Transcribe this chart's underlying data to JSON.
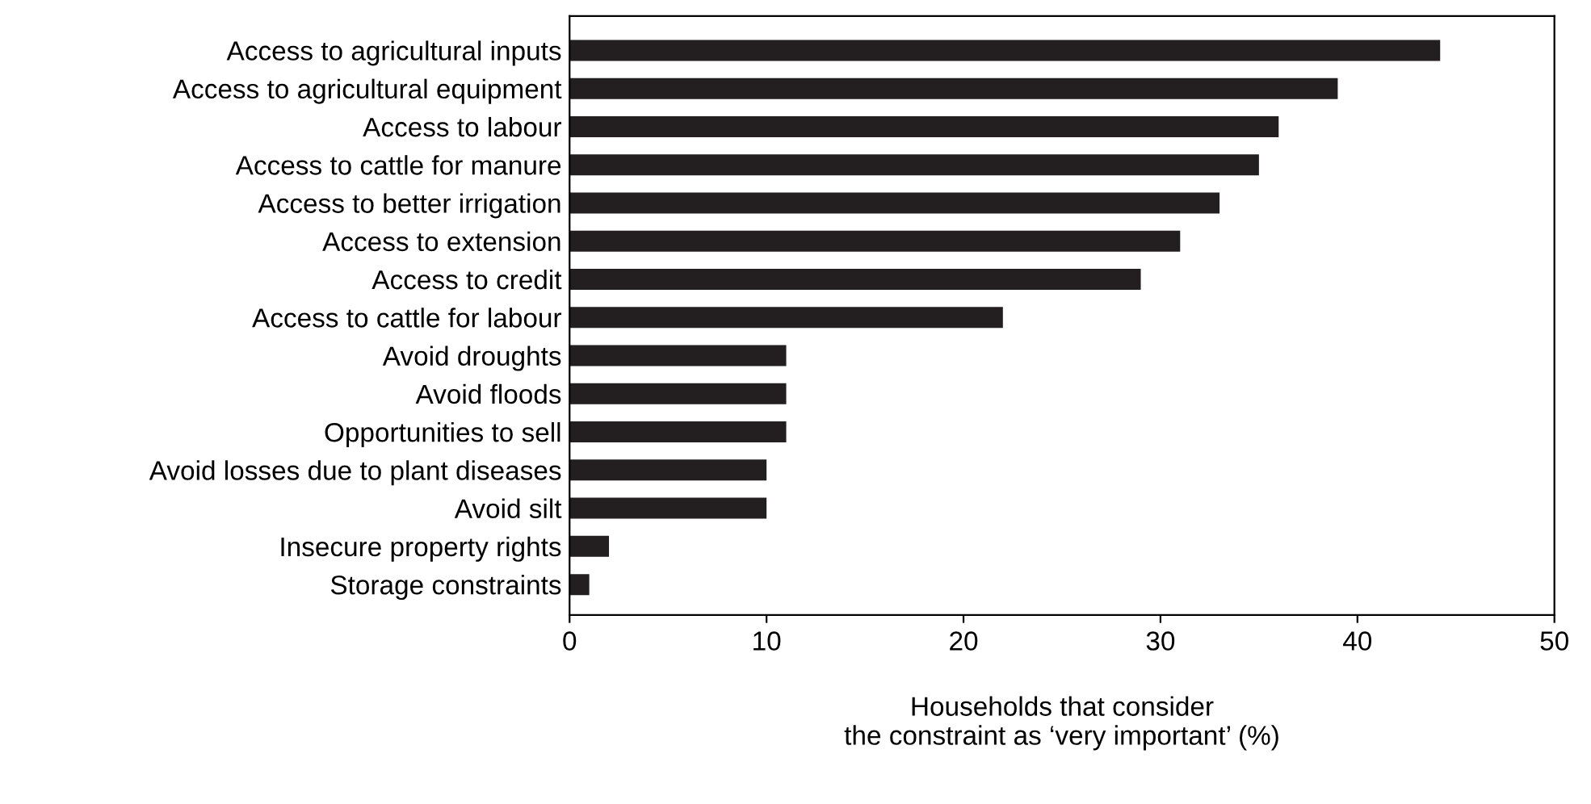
{
  "chart_data": {
    "type": "bar",
    "orientation": "horizontal",
    "categories": [
      "Access to agricultural inputs",
      "Access to agricultural equipment",
      "Access to labour",
      "Access to cattle for manure",
      "Access to better irrigation",
      "Access to extension",
      "Access to credit",
      "Access to cattle for labour",
      "Avoid droughts",
      "Avoid floods",
      "Opportunities to sell",
      "Avoid losses due to plant diseases",
      "Avoid silt",
      "Insecure property rights",
      "Storage constraints"
    ],
    "values": [
      44.2,
      39,
      36,
      35,
      33,
      31,
      29,
      22,
      11,
      11,
      11,
      10,
      10,
      2,
      1
    ],
    "color": "#231f20",
    "xlabel": "Households that consider\nthe constraint as ‘very important’ (%)",
    "xlim": [
      0,
      50
    ],
    "xticks": [
      0,
      10,
      20,
      30,
      40,
      50
    ],
    "grid": false,
    "legend": false
  }
}
